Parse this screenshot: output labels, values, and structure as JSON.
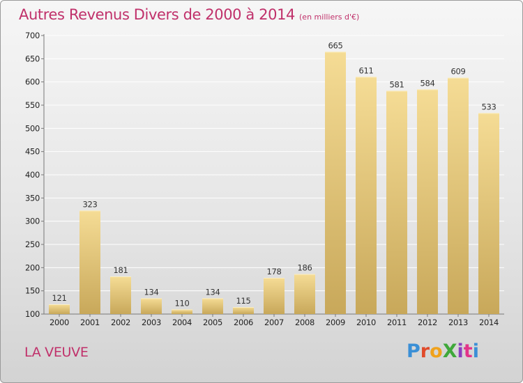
{
  "title": {
    "main": "Autres Revenus Divers de 2000 à 2014",
    "sub": "(en milliers d'€)"
  },
  "footer": {
    "commune": "LA VEUVE",
    "logo": "ProXiti",
    "logo_colors": [
      "#3a8fd6",
      "#e04a2a",
      "#f0a21c",
      "#3fa83a",
      "#8a3fc0",
      "#e2348a",
      "#3a8fd6"
    ]
  },
  "colors": {
    "title": "#c0306a",
    "bar_light": "#f5dc95",
    "bar_dark": "#c8a85a",
    "grid": "#ffffff"
  },
  "chart_data": {
    "type": "bar",
    "title": "Autres Revenus Divers de 2000 à 2014",
    "subtitle": "(en milliers d'€)",
    "xlabel": "",
    "ylabel": "",
    "categories": [
      "2000",
      "2001",
      "2002",
      "2003",
      "2004",
      "2005",
      "2006",
      "2007",
      "2008",
      "2009",
      "2010",
      "2011",
      "2012",
      "2013",
      "2014"
    ],
    "values": [
      121,
      323,
      181,
      134,
      110,
      134,
      115,
      178,
      186,
      665,
      611,
      581,
      584,
      609,
      533
    ],
    "ylim": [
      100,
      700
    ],
    "yticks": [
      "100",
      "150",
      "200",
      "250",
      "300",
      "350",
      "400",
      "450",
      "500",
      "550",
      "600",
      "650",
      "700"
    ],
    "grid": true,
    "legend": "none"
  }
}
